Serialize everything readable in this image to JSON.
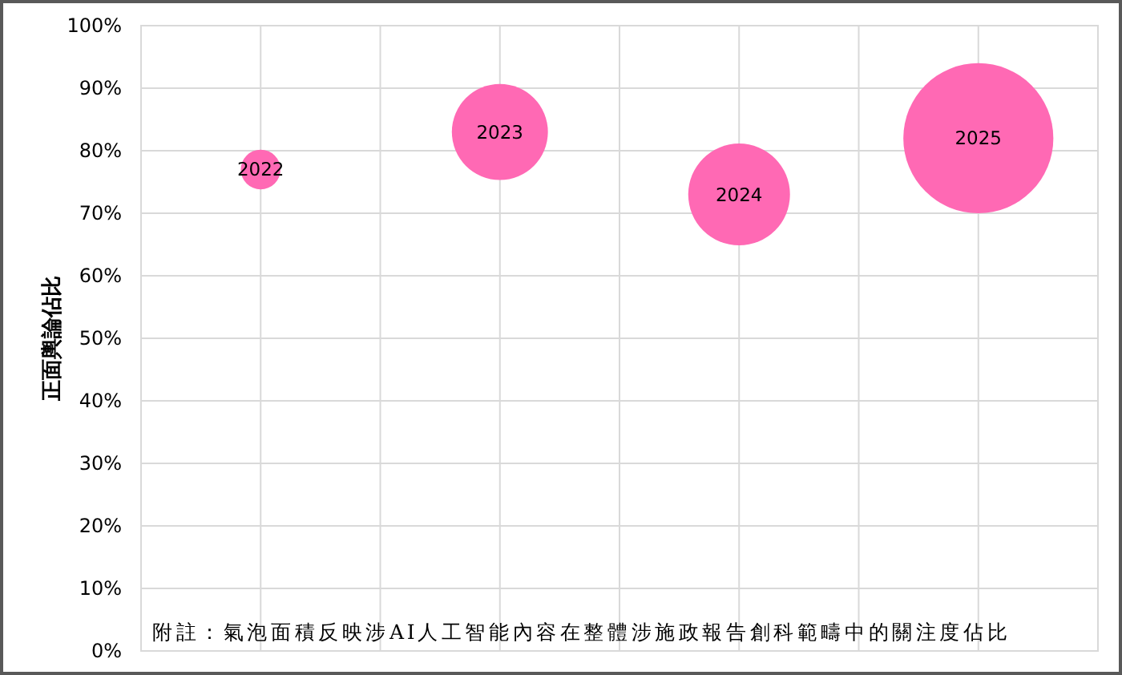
{
  "chart_data": {
    "type": "bubble",
    "ylabel": "正面輿論佔比",
    "annotations": [
      "附註：氣泡面積反映涉AI人工智能內容在整體涉施政報告創科範疇中的關注度佔比"
    ],
    "categories": [
      "2022",
      "2023",
      "2024",
      "2025"
    ],
    "values": [
      77,
      83,
      73,
      82
    ],
    "sizes": [
      0.07,
      0.41,
      0.46,
      1
    ],
    "color": "#ff69b4",
    "ylim": [
      0,
      100
    ],
    "yticks": [
      {
        "value": 0,
        "label": "0%"
      },
      {
        "value": 10,
        "label": "10%"
      },
      {
        "value": 20,
        "label": "20%"
      },
      {
        "value": 30,
        "label": "30%"
      },
      {
        "value": 40,
        "label": "40%"
      },
      {
        "value": 50,
        "label": "50%"
      },
      {
        "value": 60,
        "label": "60%"
      },
      {
        "value": 70,
        "label": "70%"
      },
      {
        "value": 80,
        "label": "80%"
      },
      {
        "value": 90,
        "label": "90%"
      },
      {
        "value": 100,
        "label": "100%"
      }
    ],
    "grid": true
  }
}
